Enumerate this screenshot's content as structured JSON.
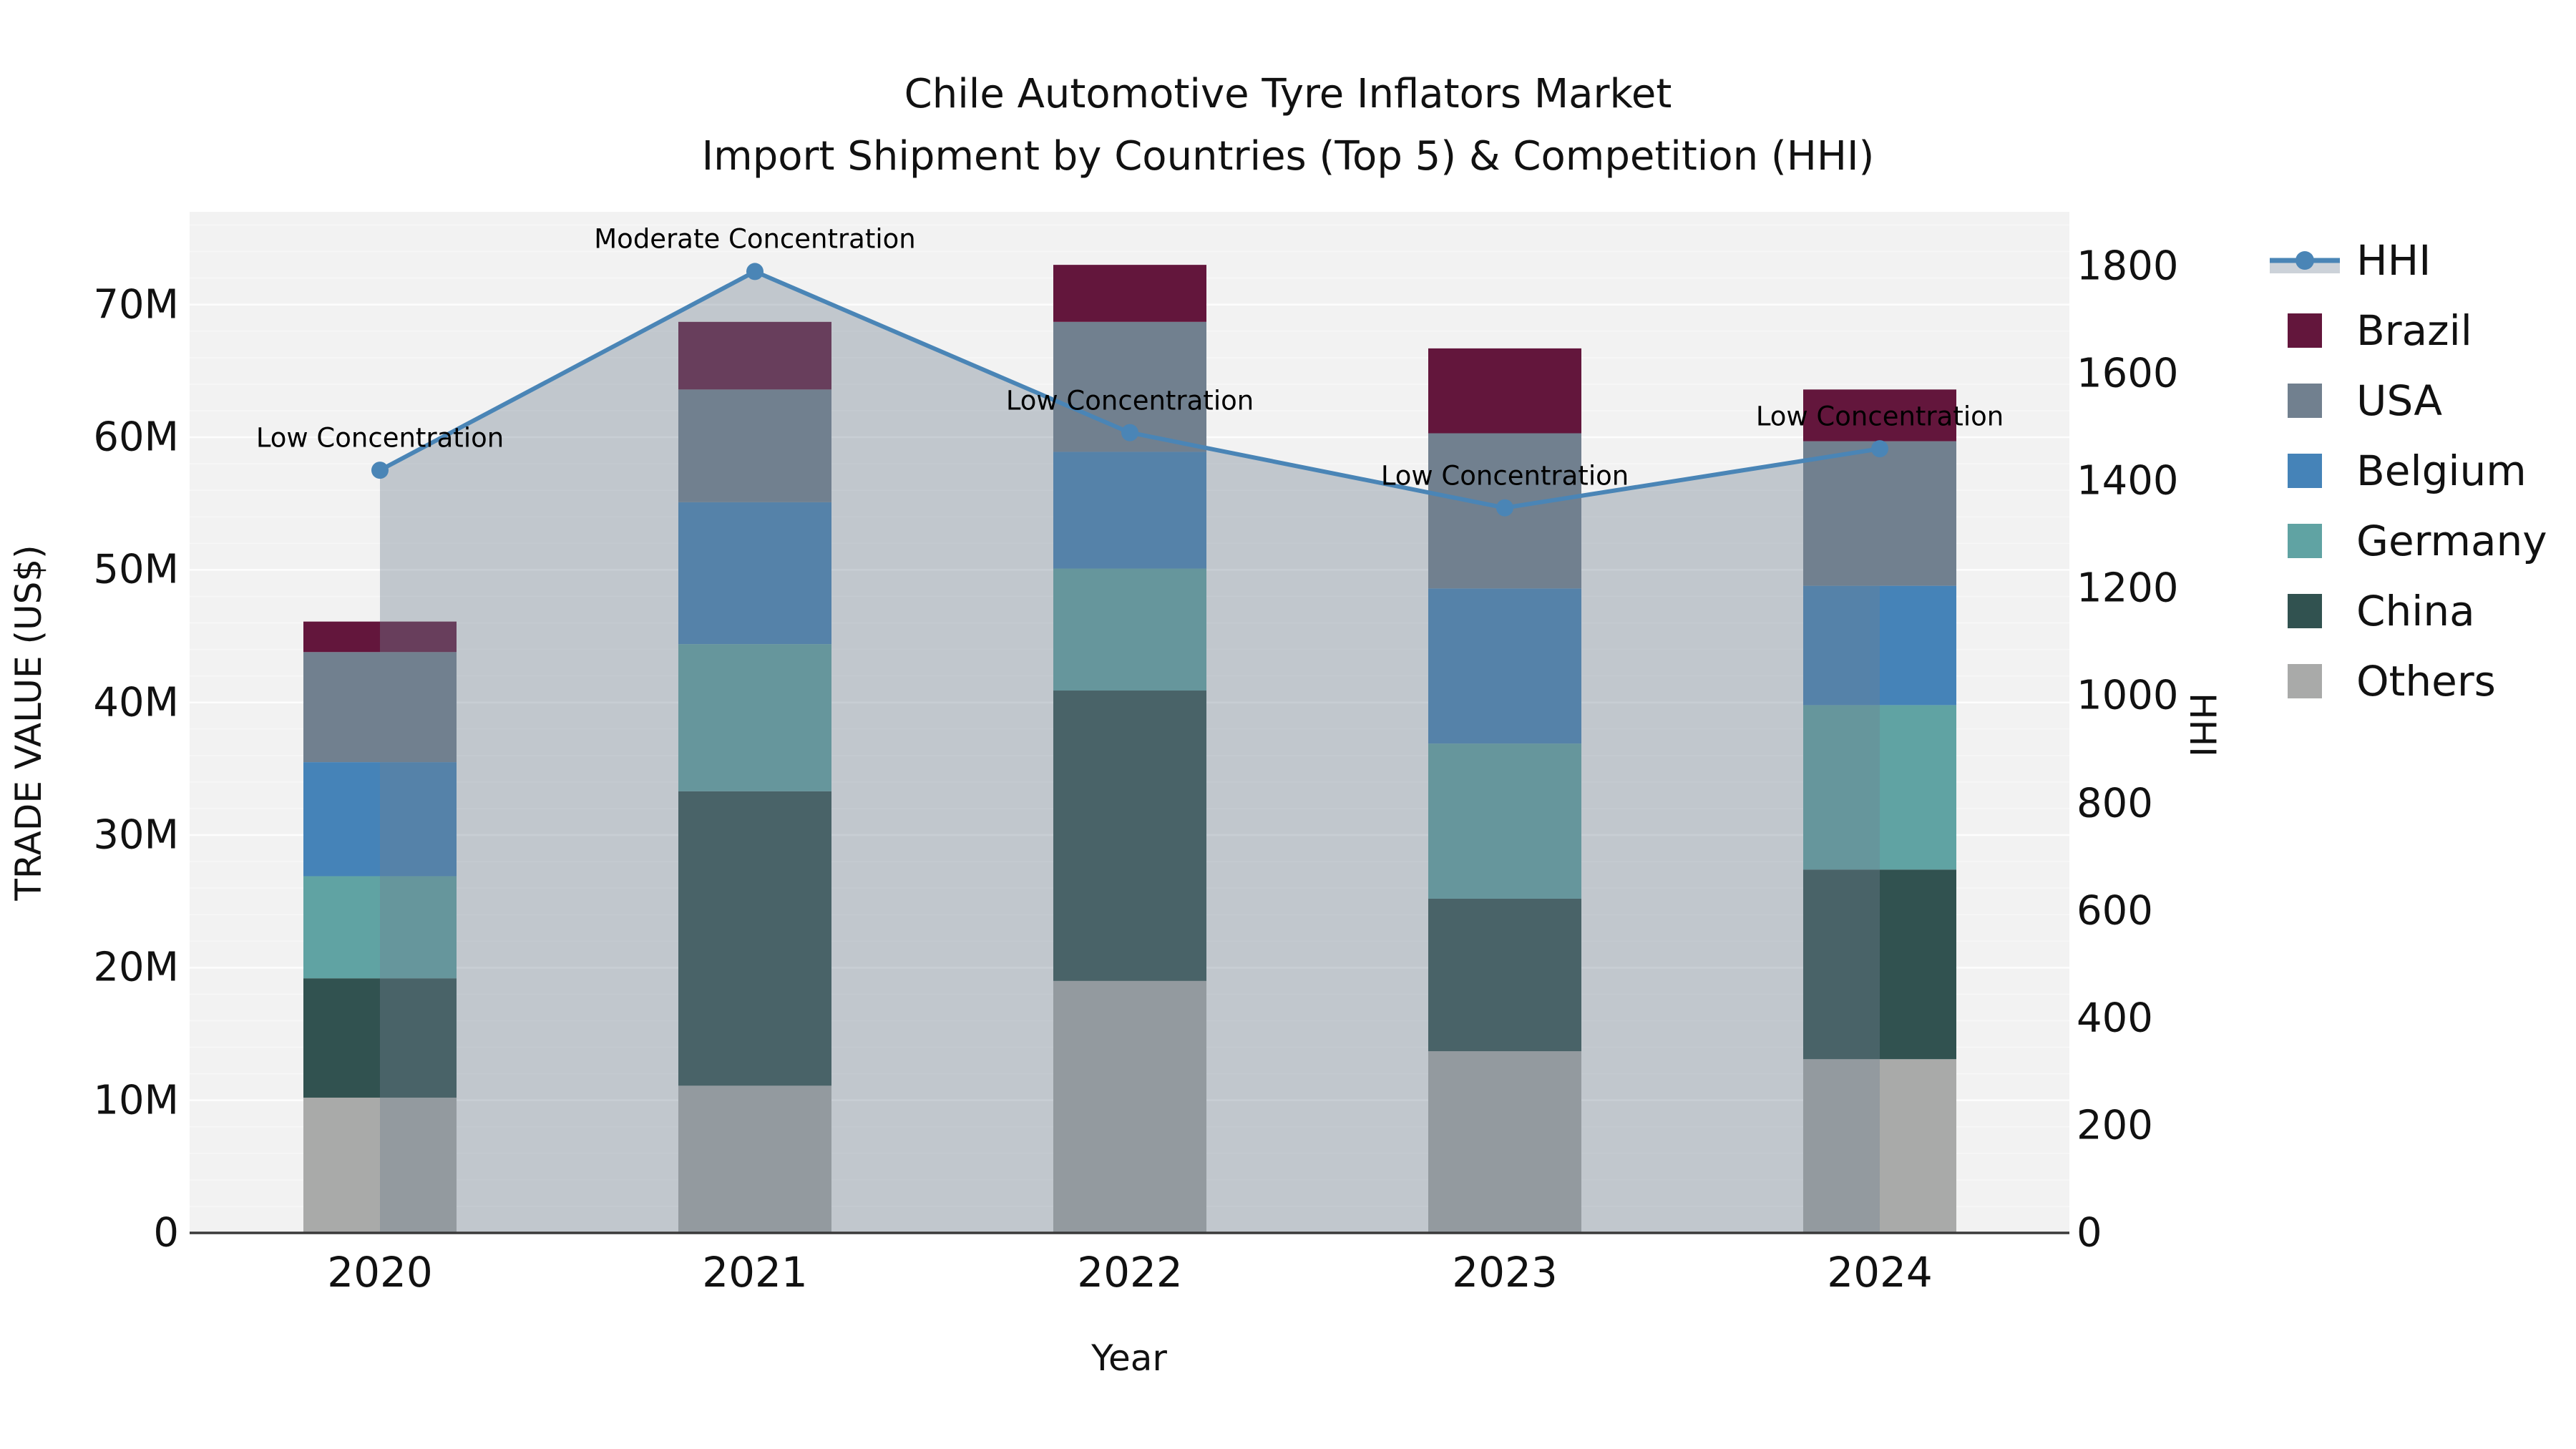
{
  "title": {
    "line1": "Chile Automotive Tyre Inflators Market",
    "line2": "Import Shipment by Countries (Top 5) & Competition (HHI)"
  },
  "axes": {
    "x_title": "Year",
    "y_left_title": "TRADE VALUE (US$)",
    "y_right_title": "HHI",
    "y_left_tick_labels": [
      "0",
      "10M",
      "20M",
      "30M",
      "40M",
      "50M",
      "60M",
      "70M"
    ],
    "y_right_tick_labels": [
      "0",
      "200",
      "400",
      "600",
      "800",
      "1000",
      "1200",
      "1400",
      "1600",
      "1800"
    ],
    "x_tick_labels": [
      "2020",
      "2021",
      "2022",
      "2023",
      "2024"
    ]
  },
  "legend": {
    "items": [
      {
        "label": "HHI",
        "type": "line"
      },
      {
        "label": "Brazil",
        "type": "box"
      },
      {
        "label": "USA",
        "type": "box"
      },
      {
        "label": "Belgium",
        "type": "box"
      },
      {
        "label": "Germany",
        "type": "box"
      },
      {
        "label": "China",
        "type": "box"
      },
      {
        "label": "Others",
        "type": "box"
      }
    ]
  },
  "colors": {
    "Brazil": "#63163c",
    "USA": "#71808f",
    "Belgium": "#4583b8",
    "Germany": "#60a3a3",
    "China": "#315250",
    "Others": "#a9aaa9",
    "hhi_line": "#4a85b6",
    "area_fill": "rgba(112,128,144,0.38)",
    "plot_bg": "#f2f2f2",
    "grid": "#ffffff",
    "axis_line": "#3a3a3a",
    "legend_band": "#ccd2d9"
  },
  "chart_data": {
    "type": "combo_stacked_bar_line",
    "title": "Chile Automotive Tyre Inflators Market — Import Shipment by Countries (Top 5) & Competition (HHI)",
    "categories": [
      "2020",
      "2021",
      "2022",
      "2023",
      "2024"
    ],
    "bar_unit": "million US$ (trade value)",
    "stack_order_bottom_to_top": [
      "Others",
      "China",
      "Germany",
      "Belgium",
      "USA",
      "Brazil"
    ],
    "series": [
      {
        "name": "Brazil",
        "values": [
          2.3,
          5.1,
          4.3,
          6.4,
          3.9
        ]
      },
      {
        "name": "USA",
        "values": [
          8.3,
          8.5,
          9.8,
          11.7,
          10.9
        ]
      },
      {
        "name": "Belgium",
        "values": [
          8.6,
          10.7,
          8.8,
          11.7,
          9.0
        ]
      },
      {
        "name": "Germany",
        "values": [
          7.7,
          11.1,
          9.2,
          11.7,
          12.4
        ]
      },
      {
        "name": "China",
        "values": [
          9.0,
          22.2,
          21.9,
          11.5,
          14.3
        ]
      },
      {
        "name": "Others",
        "values": [
          10.2,
          11.1,
          19.0,
          13.7,
          13.1
        ]
      }
    ],
    "bar_totals": [
      46.1,
      68.7,
      73.0,
      66.7,
      63.6
    ],
    "line_series": {
      "name": "HHI",
      "axis": "right",
      "values": [
        1420,
        1790,
        1490,
        1350,
        1460
      ],
      "area_under_line": true
    },
    "annotations": [
      {
        "category": "2020",
        "text": "Low Concentration"
      },
      {
        "category": "2021",
        "text": "Moderate Concentration"
      },
      {
        "category": "2022",
        "text": "Low Concentration"
      },
      {
        "category": "2023",
        "text": "Low Concentration"
      },
      {
        "category": "2024",
        "text": "Low Concentration"
      }
    ],
    "xlabel": "Year",
    "ylabel_left": "TRADE VALUE (US$)",
    "ylabel_right": "HHI",
    "y_left_range_M": [
      0,
      77
    ],
    "y_right_range": [
      0,
      1900
    ],
    "y_left_ticks_M": [
      0,
      10,
      20,
      30,
      40,
      50,
      60,
      70
    ],
    "y_right_ticks": [
      0,
      200,
      400,
      600,
      800,
      1000,
      1200,
      1400,
      1600,
      1800
    ],
    "grid": "horizontal, minor every 2M faint white on light-gray background",
    "legend_position": "right, vertical"
  }
}
